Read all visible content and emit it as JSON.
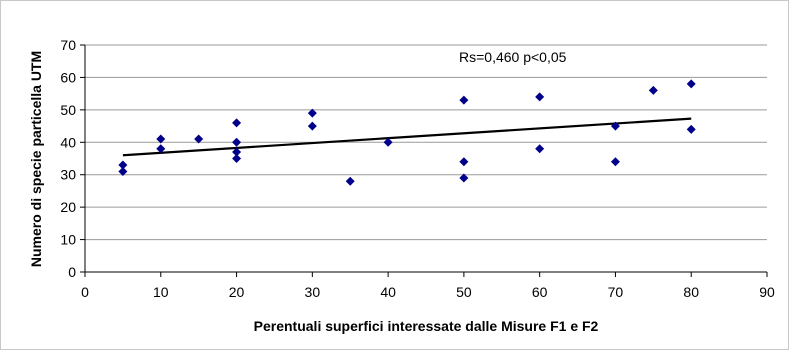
{
  "chart_data": {
    "type": "scatter",
    "title": "",
    "xlabel": "Perentuali superfici interessate dalle Misure F1 e F2",
    "ylabel": "Numero di specie particella UTM",
    "xlim": [
      0,
      90
    ],
    "ylim": [
      0,
      70
    ],
    "xticks": [
      "0",
      "10",
      "20",
      "30",
      "40",
      "50",
      "60",
      "70",
      "80",
      "90"
    ],
    "yticks": [
      "0",
      "10",
      "20",
      "30",
      "40",
      "50",
      "60",
      "70"
    ],
    "grid": "horizontal",
    "legend": "none",
    "annotation": "Rs=0,460 p<0,05",
    "marker_color": "#00008b",
    "trendline_color": "#000000",
    "points": [
      {
        "x": 5,
        "y": 31
      },
      {
        "x": 5,
        "y": 33
      },
      {
        "x": 10,
        "y": 38
      },
      {
        "x": 10,
        "y": 41
      },
      {
        "x": 15,
        "y": 41
      },
      {
        "x": 20,
        "y": 35
      },
      {
        "x": 20,
        "y": 37
      },
      {
        "x": 20,
        "y": 40
      },
      {
        "x": 20,
        "y": 46
      },
      {
        "x": 30,
        "y": 45
      },
      {
        "x": 30,
        "y": 49
      },
      {
        "x": 35,
        "y": 28
      },
      {
        "x": 40,
        "y": 40
      },
      {
        "x": 50,
        "y": 29
      },
      {
        "x": 50,
        "y": 34
      },
      {
        "x": 50,
        "y": 53
      },
      {
        "x": 60,
        "y": 38
      },
      {
        "x": 60,
        "y": 54
      },
      {
        "x": 70,
        "y": 34
      },
      {
        "x": 70,
        "y": 45
      },
      {
        "x": 75,
        "y": 56
      },
      {
        "x": 80,
        "y": 44
      },
      {
        "x": 80,
        "y": 58
      }
    ],
    "trendline": {
      "x": [
        5,
        80
      ],
      "y": [
        36,
        47.3
      ]
    }
  }
}
